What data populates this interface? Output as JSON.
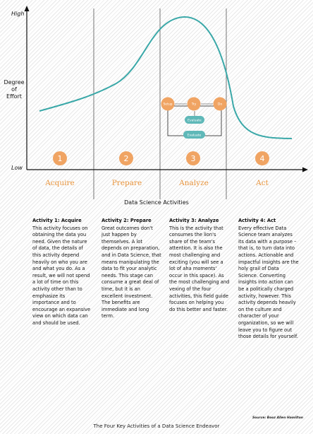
{
  "axis": {
    "y_high": "High",
    "y_low": "Low",
    "y_label": [
      "Degree",
      "of",
      "Effort"
    ]
  },
  "phases": [
    {
      "num": "1",
      "label": "Acquire"
    },
    {
      "num": "2",
      "label": "Prepare"
    },
    {
      "num": "3",
      "label": "Analyze"
    },
    {
      "num": "4",
      "label": "Act"
    }
  ],
  "loop": {
    "nodes": [
      "Setup",
      "Try",
      "Do"
    ],
    "evaluators": [
      "Evaluate",
      "Evaluate"
    ]
  },
  "section_title": "Data Science Activities",
  "activities": [
    {
      "heading": "Activity 1: Acquire",
      "text": "This activity focuses on obtaining the data you need. Given the nature of data, the details of this activity depend heavily on who you are and what you do. As a result, we will not spend a lot of time on this activity other than to emphasize its importance and to encourage an expansive view on which data can and should be used."
    },
    {
      "heading": "Activity 2: Prepare",
      "text": "Great outcomes don't just happen by themselves. A lot depends on preparation, and in Data Science, that means manipulating the data to fit your analytic needs. This stage can consume a great deal of time, but it is an excellent investment. The benefits are immediate and long term."
    },
    {
      "heading": "Activity 3: Analyze",
      "text": "This is the activity that consumes the lion's share of the team's attention. It is also the most challenging and exciting (you will see a lot of aha moments' occur in this space). As the most challenging and vexing of the four activities, this field guide focuses on helping you do this better and faster."
    },
    {
      "heading": "Activity 4: Act",
      "text": "Every effective Data Science team analyzes its data with a purpose – that is, to turn data into actions. Actionable and impactful insights are the holy grail of Data Science. Converting insights into action can be a politically charged activity, however. This activity depends heavily on the culture and character of your organization, so we will leave you to figure out those details for yourself."
    }
  ],
  "source": "Source: Booz Allen Hamilton",
  "caption": "The Four Key Activities of a Data Science Endeavor",
  "colors": {
    "curve": "#3aa8a8",
    "accent": "#f0a463",
    "phase_text": "#e8943c",
    "loop_node": "#5fb8b8"
  }
}
